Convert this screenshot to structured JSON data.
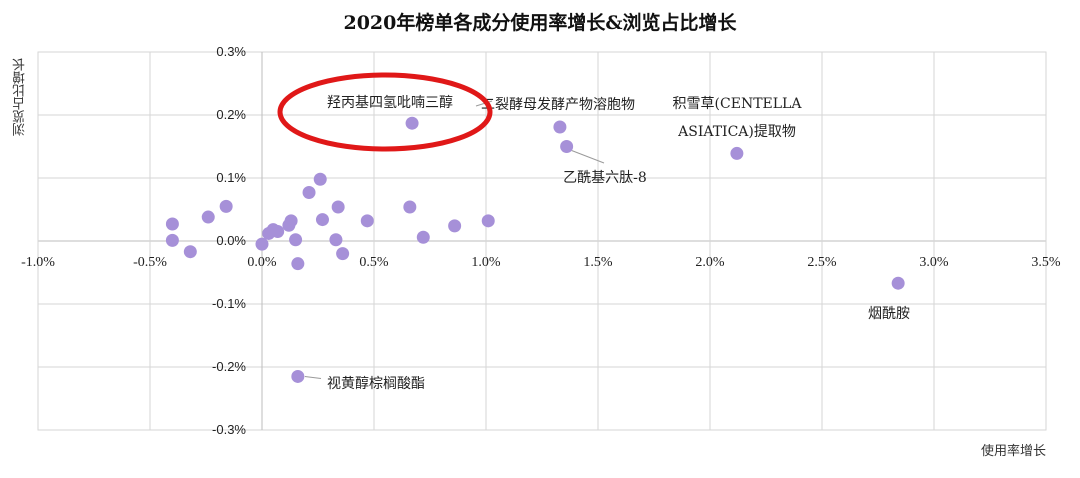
{
  "chart_data": {
    "type": "scatter",
    "title": "2020年榜单各成分使用率增长&浏览占比增长",
    "xlabel": "使用率增长",
    "ylabel": "浏览占比增长",
    "xlim": [
      -0.01,
      0.035
    ],
    "ylim": [
      -0.003,
      0.003
    ],
    "x_ticks": [
      -0.01,
      -0.005,
      0.0,
      0.005,
      0.01,
      0.015,
      0.02,
      0.025,
      0.03,
      0.035
    ],
    "x_tick_labels": [
      "-1.0%",
      "-0.5%",
      "0.0%",
      "0.5%",
      "1.0%",
      "1.5%",
      "2.0%",
      "2.5%",
      "3.0%",
      "3.5%"
    ],
    "y_ticks": [
      0.003,
      0.002,
      0.001,
      0.0,
      -0.001,
      -0.002,
      -0.003
    ],
    "y_tick_labels": [
      "0.3%",
      "0.2%",
      "0.1%",
      "0.0%",
      "-0.1%",
      "-0.2%",
      "-0.3%"
    ],
    "grid": true,
    "point_color": "#a690d8",
    "highlight_color": "#e01818",
    "points": [
      {
        "x": -0.004,
        "y": 0.00027
      },
      {
        "x": -0.004,
        "y": 1e-05
      },
      {
        "x": -0.0032,
        "y": -0.00017
      },
      {
        "x": -0.0024,
        "y": 0.00038
      },
      {
        "x": -0.0016,
        "y": 0.00055
      },
      {
        "x": 0.0,
        "y": -5e-05
      },
      {
        "x": 0.0003,
        "y": 0.00012
      },
      {
        "x": 0.0005,
        "y": 0.00018
      },
      {
        "x": 0.0007,
        "y": 0.00015
      },
      {
        "x": 0.0012,
        "y": 0.00025
      },
      {
        "x": 0.0013,
        "y": 0.00032
      },
      {
        "x": 0.0015,
        "y": 2e-05
      },
      {
        "x": 0.0016,
        "y": -0.00036
      },
      {
        "x": 0.0021,
        "y": 0.00077
      },
      {
        "x": 0.0026,
        "y": 0.00098
      },
      {
        "x": 0.0027,
        "y": 0.00034
      },
      {
        "x": 0.0033,
        "y": 2e-05
      },
      {
        "x": 0.0034,
        "y": 0.00054
      },
      {
        "x": 0.0036,
        "y": -0.0002
      },
      {
        "x": 0.0047,
        "y": 0.00032
      },
      {
        "x": 0.0066,
        "y": 0.00054
      },
      {
        "x": 0.0072,
        "y": 6e-05
      },
      {
        "x": 0.0086,
        "y": 0.00024
      },
      {
        "x": 0.0101,
        "y": 0.00032
      },
      {
        "x": 0.0067,
        "y": 0.00187,
        "label": "羟丙基四氢吡喃三醇",
        "highlight": true
      },
      {
        "x": 0.0133,
        "y": 0.00181,
        "label": "二裂酵母发酵产物溶胞物"
      },
      {
        "x": 0.0136,
        "y": 0.0015,
        "label": "乙酰基六肽-8"
      },
      {
        "x": 0.0212,
        "y": 0.00139,
        "label": "积雪草(CENTELLA ASIATICA)提取物",
        "label_lines": [
          "积雪草(CENTELLA",
          "ASIATICA)提取物"
        ]
      },
      {
        "x": 0.0284,
        "y": -0.00067,
        "label": "烟酰胺"
      },
      {
        "x": 0.0016,
        "y": -0.00215,
        "label": "视黄醇棕榈酸酯"
      }
    ]
  }
}
